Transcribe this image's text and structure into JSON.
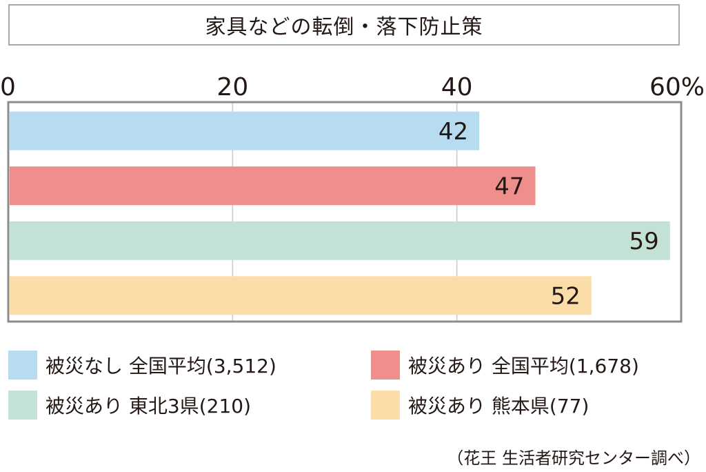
{
  "chart_data": {
    "type": "bar",
    "orientation": "horizontal",
    "title": "家具などの転倒・落下防止策",
    "xlim": [
      0,
      60
    ],
    "ticks": [
      {
        "value": 0,
        "label": "0"
      },
      {
        "value": 20,
        "label": "20"
      },
      {
        "value": 40,
        "label": "40"
      },
      {
        "value": 60,
        "label": "60%"
      }
    ],
    "grid": true,
    "categories": [
      "被災なし 全国平均(3,512)",
      "被災あり 全国平均(1,678)",
      "被災あり 東北3県(210)",
      "被災あり 熊本県(77)"
    ],
    "values": [
      42,
      47,
      59,
      52
    ],
    "colors": [
      "#b7dcf0",
      "#ef8f8b",
      "#c3e1d5",
      "#fbdda9"
    ],
    "legend_position": "bottom"
  },
  "legend": [
    {
      "label": "被災なし 全国平均(3,512)",
      "color": "#b7dcf0"
    },
    {
      "label": "被災あり 全国平均(1,678)",
      "color": "#ef8f8b"
    },
    {
      "label": "被災あり 東北3県(210)",
      "color": "#c3e1d5"
    },
    {
      "label": "被災あり 熊本県(77)",
      "color": "#fbdda9"
    }
  ],
  "source": "（花王 生活者研究センター調べ）"
}
